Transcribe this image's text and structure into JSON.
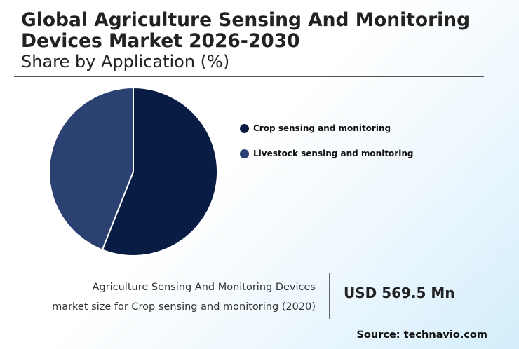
{
  "header": {
    "title": "Global Agriculture Sensing And Monitoring Devices Market 2026-2030",
    "subtitle": "Share by Application (%)"
  },
  "chart_data": {
    "type": "pie",
    "title": "Global Agriculture Sensing And Monitoring Devices Market 2026-2030",
    "subtitle": "Share by Application (%)",
    "categories": [
      "Crop sensing and monitoring",
      "Livestock sensing and monitoring"
    ],
    "values": [
      56,
      44
    ],
    "colors": [
      "#081c44",
      "#2b4172"
    ],
    "legend_position": "right"
  },
  "stat": {
    "caption_line1": "Agriculture Sensing And Monitoring Devices",
    "caption_line2": "market size for Crop sensing and monitoring (2020)",
    "value": "USD 569.5 Mn"
  },
  "footer": {
    "source": "Source: technavio.com"
  }
}
